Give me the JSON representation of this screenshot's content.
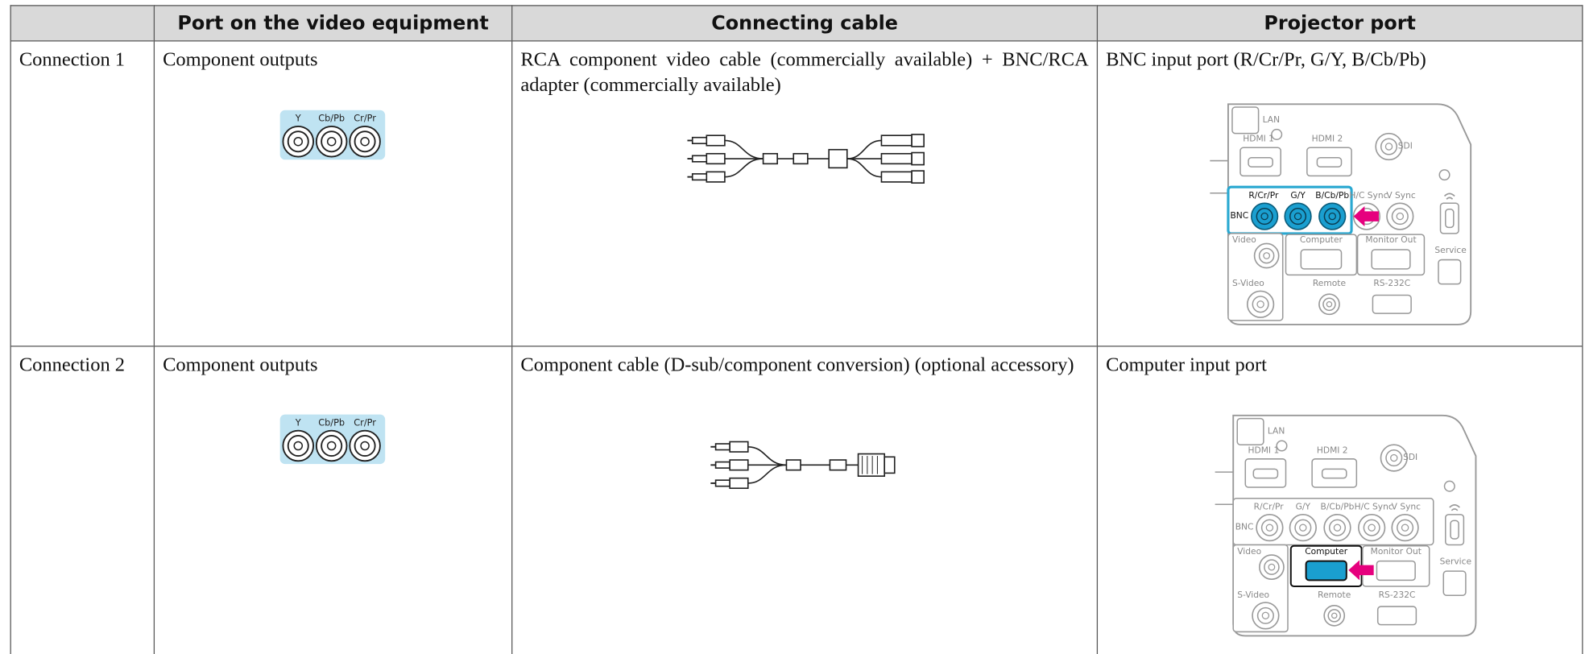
{
  "table": {
    "headers": [
      "Port on the video equipment",
      "Connecting cable",
      "Projector port"
    ],
    "rows": [
      {
        "label": "Connection 1",
        "equipment": {
          "text": "Component outputs",
          "port_labels": [
            "Y",
            "Cb/Pb",
            "Cr/Pr"
          ]
        },
        "cable": {
          "text": "RCA component video cable (commercially available) + BNC/RCA adapter (commercially available)"
        },
        "projector": {
          "text": "BNC input port (R/Cr/Pr, G/Y, B/Cb/Pb)",
          "panel_labels": {
            "lan": "LAN",
            "hdmi1": "HDMI 1",
            "hdmi2": "HDMI 2",
            "sdi": "SDI",
            "r": "R/Cr/Pr",
            "g": "G/Y",
            "b": "B/Cb/Pb",
            "hsync": "H/C Sync",
            "vsync": "V Sync",
            "bnc": "BNC",
            "video": "Video",
            "computer": "Computer",
            "monitor_out": "Monitor Out",
            "service": "Service",
            "s_video": "S-Video",
            "remote": "Remote",
            "rs232c": "RS-232C"
          }
        }
      },
      {
        "label": "Connection 2",
        "equipment": {
          "text": "Component outputs",
          "port_labels": [
            "Y",
            "Cb/Pb",
            "Cr/Pr"
          ]
        },
        "cable": {
          "text": "Component cable (D-sub/component conversion) (optional accessory)"
        },
        "projector": {
          "text": "Computer input port",
          "panel_labels": {
            "lan": "LAN",
            "hdmi1": "HDMI 1",
            "hdmi2": "HDMI 2",
            "sdi": "SDI",
            "r": "R/Cr/Pr",
            "g": "G/Y",
            "b": "B/Cb/Pb",
            "hsync": "H/C Sync",
            "vsync": "V Sync",
            "bnc": "BNC",
            "video": "Video",
            "computer": "Computer",
            "monitor_out": "Monitor Out",
            "service": "Service",
            "s_video": "S-Video",
            "remote": "Remote",
            "rs232c": "RS-232C"
          }
        }
      }
    ]
  }
}
